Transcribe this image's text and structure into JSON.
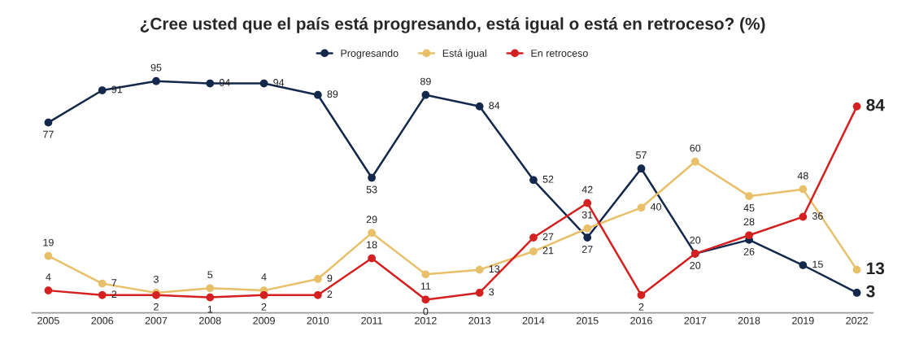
{
  "chart_data": {
    "type": "line",
    "title": "¿Cree usted que el país está progresando, está igual o está en retroceso? (%)",
    "categories": [
      "2005",
      "2006",
      "2007",
      "2008",
      "2009",
      "2010",
      "2011",
      "2012",
      "2013",
      "2014",
      "2015",
      "2016",
      "2017",
      "2018",
      "2019",
      "2022"
    ],
    "series": [
      {
        "name": "Progresando",
        "color": "#14284b",
        "values": [
          77,
          91,
          95,
          94,
          94,
          89,
          53,
          89,
          84,
          52,
          27,
          57,
          20,
          26,
          15,
          3
        ]
      },
      {
        "name": "Está igual",
        "color": "#e8c06a",
        "values": [
          19,
          7,
          3,
          5,
          4,
          9,
          29,
          11,
          13,
          21,
          31,
          40,
          60,
          45,
          48,
          13
        ]
      },
      {
        "name": "En retroceso",
        "color": "#d42020",
        "values": [
          4,
          2,
          2,
          1,
          2,
          2,
          18,
          0,
          3,
          27,
          42,
          2,
          20,
          28,
          36,
          84
        ]
      }
    ],
    "tick_labels": "x",
    "data_labels": true,
    "legend": "top",
    "marker": "circle",
    "line_style": "solid",
    "grid": false
  }
}
